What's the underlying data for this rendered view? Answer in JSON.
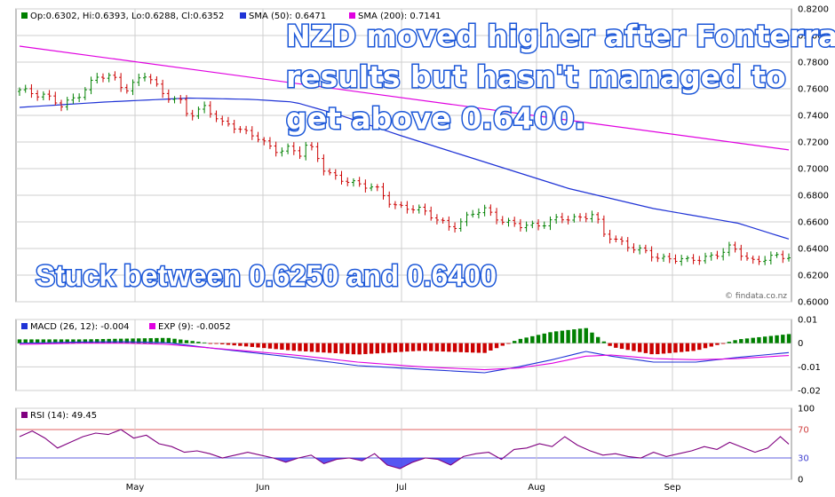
{
  "price_panel": {
    "legend": {
      "ohlc": "Op:0.6302, Hi:0.6393, Lo:0.6288, Cl:0.6352",
      "sma50": "SMA (50): 0.6471",
      "sma200": "SMA (200): 0.7141"
    },
    "watermark": "© findata.co.nz",
    "callout_main": [
      "NZD moved higher after Fonterra",
      "results but hasn't managed to",
      "get above 0.6400."
    ],
    "callout_range": "Stuck between 0.6250 and 0.6400"
  },
  "macd_panel": {
    "legend": {
      "macd": "MACD (26, 12): -0.004",
      "exp": "EXP (9): -0.0052"
    }
  },
  "rsi_panel": {
    "legend": "RSI (14): 49.45"
  },
  "colors": {
    "up": "#008000",
    "down": "#cc0000",
    "sma50": "#1f33d6",
    "sma200": "#e000e0",
    "macd": "#1f33d6",
    "exp": "#e000e0",
    "rsi": "#800080",
    "rsi_fill": "#3a3af0",
    "grid": "#cfcfcf",
    "callout_text": "#ffffff",
    "callout_outline": "#1a56d8"
  },
  "chart_data": [
    {
      "type": "candlestick",
      "ylim": [
        0.6,
        0.82
      ],
      "y_ticks": [
        "0.8200",
        "0.8000",
        "0.7800",
        "0.7600",
        "0.7400",
        "0.7200",
        "0.7000",
        "0.6800",
        "0.6600",
        "0.6400",
        "0.6200",
        "0.6000"
      ],
      "x_tick_labels": [
        "May",
        "Jun",
        "Jul",
        "Aug",
        "Sep"
      ],
      "grid": true,
      "bars": {
        "count": 130,
        "close_path": [
          [
            0,
            0.758
          ],
          [
            6,
            0.756
          ],
          [
            10,
            0.746
          ],
          [
            14,
            0.756
          ],
          [
            18,
            0.768
          ],
          [
            22,
            0.769
          ],
          [
            25,
            0.76
          ],
          [
            28,
            0.766
          ],
          [
            30,
            0.77
          ],
          [
            34,
            0.757
          ],
          [
            38,
            0.75
          ],
          [
            40,
            0.738
          ],
          [
            44,
            0.748
          ],
          [
            48,
            0.733
          ],
          [
            52,
            0.73
          ],
          [
            56,
            0.725
          ],
          [
            60,
            0.712
          ],
          [
            64,
            0.717
          ],
          [
            66,
            0.71
          ],
          [
            68,
            0.718
          ],
          [
            70,
            0.71
          ],
          [
            72,
            0.7
          ],
          [
            76,
            0.692
          ],
          [
            80,
            0.687
          ],
          [
            84,
            0.688
          ],
          [
            88,
            0.672
          ],
          [
            90,
            0.67
          ],
          [
            94,
            0.672
          ],
          [
            98,
            0.662
          ],
          [
            102,
            0.656
          ],
          [
            106,
            0.664
          ],
          [
            110,
            0.669
          ],
          [
            114,
            0.662
          ],
          [
            118,
            0.656
          ],
          [
            122,
            0.658
          ],
          [
            126,
            0.661
          ],
          [
            130,
            0.662
          ],
          [
            134,
            0.665
          ],
          [
            136,
            0.666
          ],
          [
            138,
            0.65
          ],
          [
            142,
            0.646
          ],
          [
            146,
            0.639
          ],
          [
            150,
            0.634
          ],
          [
            154,
            0.633
          ],
          [
            158,
            0.63
          ],
          [
            162,
            0.634
          ],
          [
            166,
            0.636
          ],
          [
            168,
            0.64
          ],
          [
            170,
            0.638
          ],
          [
            174,
            0.63
          ],
          [
            178,
            0.633
          ],
          [
            182,
            0.6352
          ]
        ]
      },
      "series": [
        {
          "name": "SMA (50)",
          "points": [
            [
              0,
              0.746
            ],
            [
              20,
              0.75
            ],
            [
              40,
              0.753
            ],
            [
              55,
              0.752
            ],
            [
              65,
              0.75
            ],
            [
              75,
              0.741
            ],
            [
              90,
              0.725
            ],
            [
              110,
              0.705
            ],
            [
              130,
              0.685
            ],
            [
              150,
              0.67
            ],
            [
              170,
              0.659
            ],
            [
              182,
              0.6471
            ]
          ]
        },
        {
          "name": "SMA (200)",
          "points": [
            [
              0,
              0.792
            ],
            [
              182,
              0.7141
            ]
          ]
        }
      ]
    },
    {
      "type": "line_histogram",
      "ylim": [
        -0.02,
        0.01
      ],
      "y_ticks": [
        "0.01",
        "0",
        "-0.01",
        "-0.02"
      ],
      "series": [
        {
          "name": "MACD (26, 12)",
          "points": [
            [
              0,
              0.0
            ],
            [
              15,
              0.0005
            ],
            [
              25,
              0.0006
            ],
            [
              35,
              0.0002
            ],
            [
              45,
              -0.002
            ],
            [
              55,
              -0.004
            ],
            [
              65,
              -0.006
            ],
            [
              80,
              -0.0095
            ],
            [
              95,
              -0.011
            ],
            [
              110,
              -0.0125
            ],
            [
              118,
              -0.01
            ],
            [
              126,
              -0.007
            ],
            [
              134,
              -0.0035
            ],
            [
              140,
              -0.0055
            ],
            [
              150,
              -0.008
            ],
            [
              160,
              -0.008
            ],
            [
              170,
              -0.006
            ],
            [
              182,
              -0.004
            ]
          ]
        },
        {
          "name": "EXP (9)",
          "points": [
            [
              0,
              -0.0005
            ],
            [
              15,
              0.0
            ],
            [
              25,
              0.0
            ],
            [
              35,
              -0.0005
            ],
            [
              45,
              -0.002
            ],
            [
              55,
              -0.0035
            ],
            [
              65,
              -0.005
            ],
            [
              80,
              -0.008
            ],
            [
              95,
              -0.01
            ],
            [
              110,
              -0.0112
            ],
            [
              118,
              -0.0105
            ],
            [
              126,
              -0.0085
            ],
            [
              134,
              -0.0055
            ],
            [
              140,
              -0.005
            ],
            [
              150,
              -0.0065
            ],
            [
              160,
              -0.007
            ],
            [
              170,
              -0.0065
            ],
            [
              182,
              -0.0052
            ]
          ]
        }
      ]
    },
    {
      "type": "line",
      "ylim": [
        0,
        100
      ],
      "y_ticks": [
        "100",
        "70",
        "30",
        "0"
      ],
      "levels": [
        70,
        30
      ],
      "series": [
        {
          "name": "RSI (14)",
          "points": [
            [
              0,
              60
            ],
            [
              3,
              68
            ],
            [
              6,
              58
            ],
            [
              9,
              44
            ],
            [
              12,
              52
            ],
            [
              15,
              60
            ],
            [
              18,
              65
            ],
            [
              21,
              63
            ],
            [
              24,
              70
            ],
            [
              27,
              58
            ],
            [
              30,
              62
            ],
            [
              33,
              50
            ],
            [
              36,
              46
            ],
            [
              39,
              38
            ],
            [
              42,
              40
            ],
            [
              45,
              36
            ],
            [
              48,
              30
            ],
            [
              51,
              34
            ],
            [
              54,
              38
            ],
            [
              57,
              34
            ],
            [
              60,
              30
            ],
            [
              63,
              24
            ],
            [
              66,
              30
            ],
            [
              69,
              34
            ],
            [
              72,
              22
            ],
            [
              75,
              28
            ],
            [
              78,
              30
            ],
            [
              81,
              26
            ],
            [
              84,
              36
            ],
            [
              87,
              20
            ],
            [
              90,
              15
            ],
            [
              93,
              24
            ],
            [
              96,
              30
            ],
            [
              99,
              28
            ],
            [
              102,
              20
            ],
            [
              105,
              32
            ],
            [
              108,
              36
            ],
            [
              111,
              38
            ],
            [
              114,
              28
            ],
            [
              117,
              42
            ],
            [
              120,
              44
            ],
            [
              123,
              50
            ],
            [
              126,
              46
            ],
            [
              129,
              60
            ],
            [
              132,
              48
            ],
            [
              135,
              40
            ],
            [
              138,
              34
            ],
            [
              141,
              36
            ],
            [
              144,
              32
            ],
            [
              147,
              30
            ],
            [
              150,
              38
            ],
            [
              153,
              32
            ],
            [
              156,
              36
            ],
            [
              159,
              40
            ],
            [
              162,
              46
            ],
            [
              165,
              42
            ],
            [
              168,
              52
            ],
            [
              171,
              45
            ],
            [
              174,
              38
            ],
            [
              177,
              44
            ],
            [
              180,
              60
            ],
            [
              182,
              49.45
            ]
          ]
        }
      ]
    }
  ]
}
